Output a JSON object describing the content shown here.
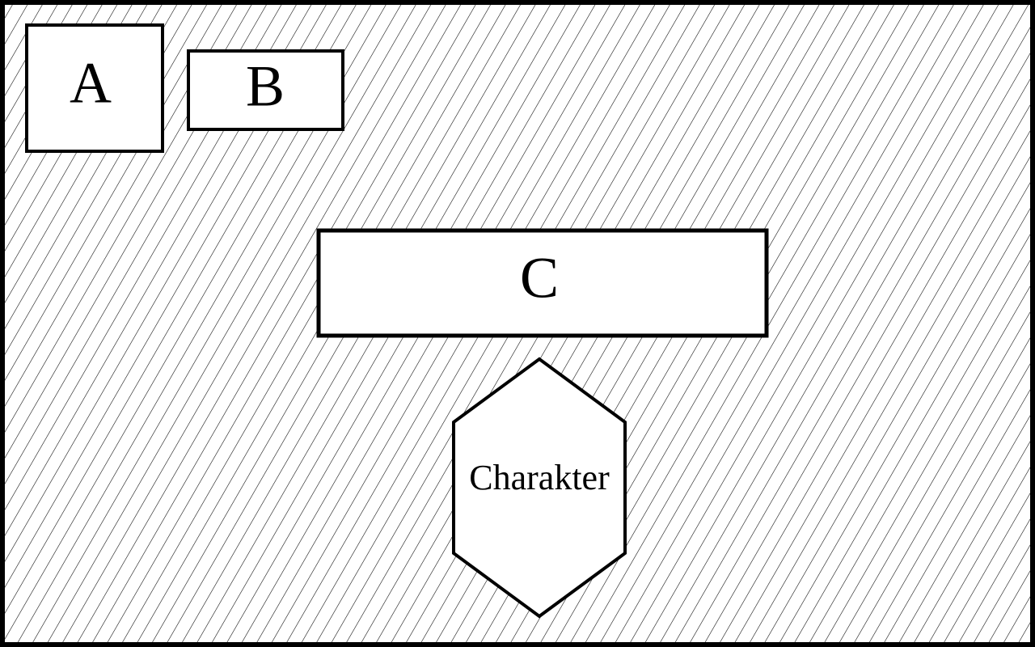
{
  "diagram": {
    "colors": {
      "stroke": "#000000",
      "box_fill": "#ffffff",
      "hatch": "#000000",
      "background": "#ffffff"
    },
    "boxes": {
      "a": {
        "label": "A"
      },
      "b": {
        "label": "B"
      },
      "c": {
        "label": "C"
      }
    },
    "hexagon": {
      "label": "Charakter"
    }
  }
}
